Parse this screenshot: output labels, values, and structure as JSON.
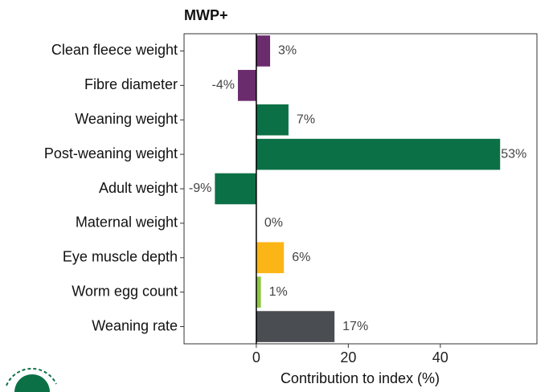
{
  "chart_data": {
    "type": "bar",
    "orientation": "horizontal",
    "title": "MWP+",
    "x_label": "Contribution to index (%)",
    "categories": [
      "Clean fleece weight",
      "Fibre diameter",
      "Weaning weight",
      "Post-weaning weight",
      "Adult weight",
      "Maternal weight",
      "Eye muscle depth",
      "Worm egg count",
      "Weaning rate"
    ],
    "values": [
      3,
      -4,
      7,
      53,
      -9,
      0,
      6,
      1,
      17
    ],
    "value_labels": [
      "3%",
      "-4%",
      "7%",
      "53%",
      "-9%",
      "0%",
      "6%",
      "1%",
      "17%"
    ],
    "colors": [
      "#6b2c6e",
      "#6b2c6e",
      "#0b7046",
      "#0b7046",
      "#0b7046",
      "#0b7046",
      "#fbb516",
      "#8cc63f",
      "#4a4d51"
    ],
    "xlim": [
      -15.7,
      61
    ],
    "xticks": [
      0,
      20,
      40
    ],
    "grid": false
  }
}
